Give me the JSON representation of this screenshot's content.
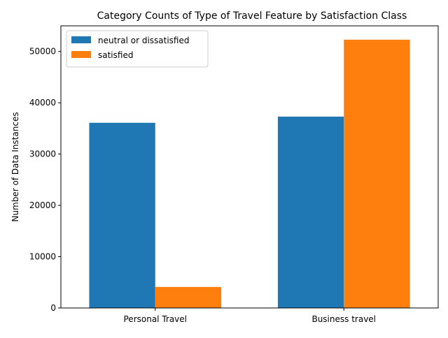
{
  "chart_data": {
    "type": "bar",
    "title": "Category Counts of Type of Travel Feature by Satisfaction Class",
    "xlabel": "",
    "ylabel": "Number of Data Instances",
    "categories": [
      "Personal Travel",
      "Business travel"
    ],
    "series": [
      {
        "name": "neutral or dissatisfied",
        "color": "#1f77b4",
        "values": [
          36100,
          37300
        ]
      },
      {
        "name": "satisfied",
        "color": "#ff7f0e",
        "values": [
          4100,
          52300
        ]
      }
    ],
    "ylim": [
      0,
      55000
    ],
    "yticks": [
      0,
      10000,
      20000,
      30000,
      40000,
      50000
    ],
    "grid": false,
    "legend_position": "top-left"
  }
}
